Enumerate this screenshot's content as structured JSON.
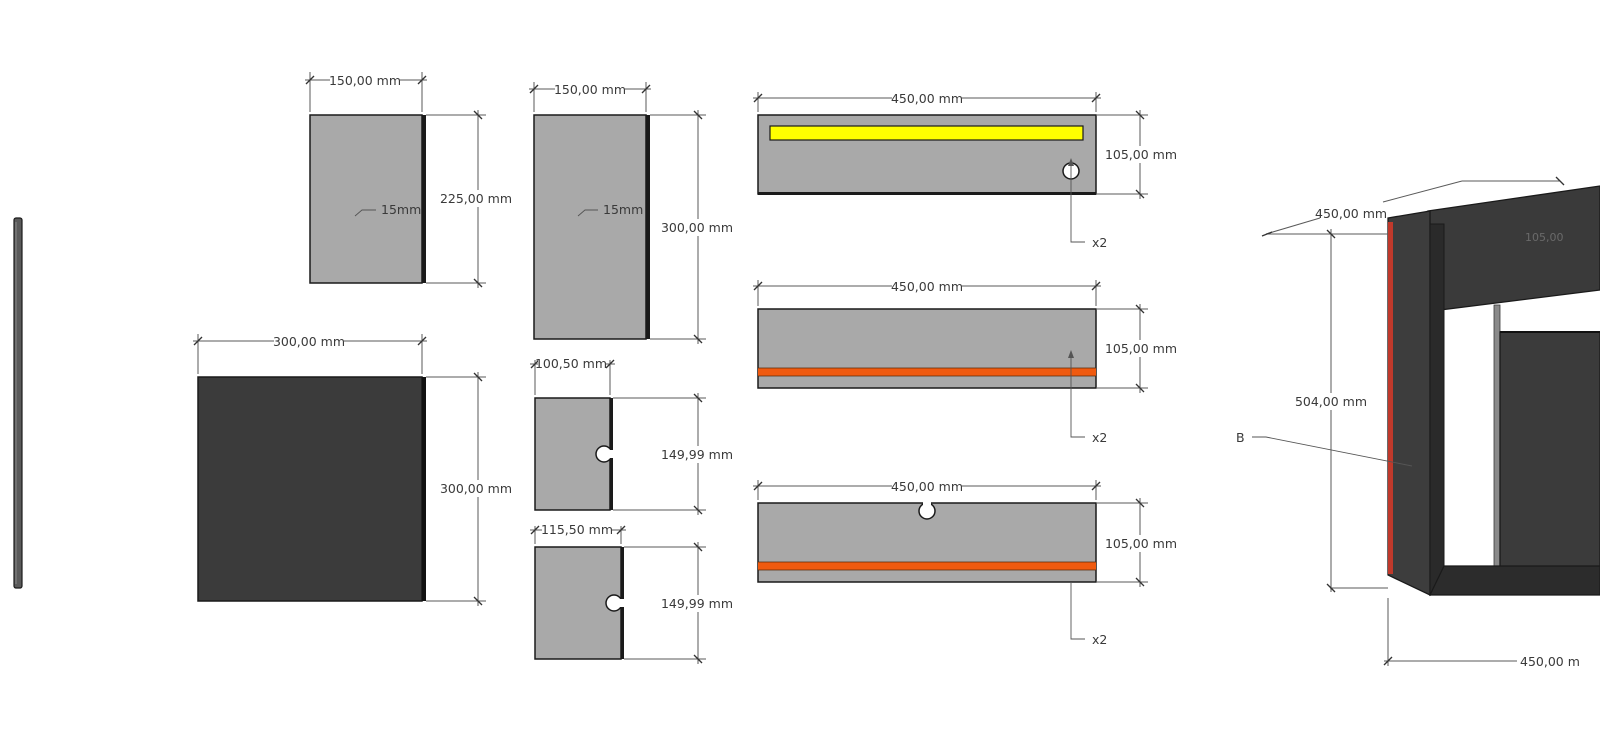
{
  "drawing": {
    "labels": {
      "w150a": "150,00 mm",
      "h225": "225,00 mm",
      "t15a": "15mm",
      "w150b": "150,00 mm",
      "h300a": "300,00 mm",
      "t15b": "15mm",
      "w300": "300,00 mm",
      "h300b": "300,00 mm",
      "w100": "100,50 mm",
      "h149a": "149,99 mm",
      "w115": "115,50 mm",
      "h149b": "149,99 mm",
      "w450a": "450,00 mm",
      "h105a": "105,00 mm",
      "x2a": "x2",
      "w450b": "450,00 mm",
      "h105b": "105,00 mm",
      "x2b": "x2",
      "w450c": "450,00 mm",
      "h105c": "105,00 mm",
      "x2c": "x2",
      "asmW450top": "450,00 mm",
      "asmTopFaded": "105,00",
      "asmH504": "504,00 mm",
      "asmB": "B",
      "asmW450bottom": "450,00 m"
    },
    "colors": {
      "panel_light": "#a9a9a9",
      "panel_dark": "#3b3b3b",
      "edge": "#1a1a1a",
      "accent_yellow": "#ffff00",
      "accent_orange": "#f05a0f",
      "dimension_line": "#5a5a5a"
    }
  }
}
